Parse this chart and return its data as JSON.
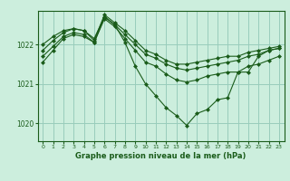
{
  "background_color": "#cceedd",
  "grid_color": "#99ccbb",
  "line_color": "#1a5c1a",
  "marker_color": "#1a5c1a",
  "xlabel": "Graphe pression niveau de la mer (hPa)",
  "xlim": [
    -0.5,
    23.5
  ],
  "ylim": [
    1019.55,
    1022.85
  ],
  "yticks": [
    1020,
    1021,
    1022
  ],
  "xticks": [
    0,
    1,
    2,
    3,
    4,
    5,
    6,
    7,
    8,
    9,
    10,
    11,
    12,
    13,
    14,
    15,
    16,
    17,
    18,
    19,
    20,
    21,
    22,
    23
  ],
  "series": [
    {
      "x": [
        0,
        1,
        2,
        3,
        4,
        5,
        6,
        7,
        8,
        9,
        10,
        11,
        12,
        13,
        14,
        15,
        16,
        17,
        18,
        19,
        20,
        21,
        22,
        23
      ],
      "y": [
        1022.0,
        1022.2,
        1022.35,
        1022.4,
        1022.35,
        1022.1,
        1022.75,
        1022.55,
        1022.35,
        1022.1,
        1021.85,
        1021.75,
        1021.6,
        1021.5,
        1021.5,
        1021.55,
        1021.6,
        1021.65,
        1021.7,
        1021.7,
        1021.8,
        1021.85,
        1021.9,
        1021.95
      ],
      "has_markers": true
    },
    {
      "x": [
        0,
        1,
        2,
        3,
        4,
        5,
        6,
        7,
        8,
        9,
        10,
        11,
        12,
        13,
        14,
        15,
        16,
        17,
        18,
        19,
        20,
        21,
        22,
        23
      ],
      "y": [
        1021.85,
        1022.1,
        1022.3,
        1022.4,
        1022.35,
        1022.15,
        1022.7,
        1022.5,
        1022.25,
        1022.0,
        1021.75,
        1021.65,
        1021.5,
        1021.4,
        1021.35,
        1021.4,
        1021.45,
        1021.5,
        1021.55,
        1021.6,
        1021.7,
        1021.75,
        1021.85,
        1021.9
      ],
      "has_markers": true
    },
    {
      "x": [
        0,
        1,
        2,
        3,
        4,
        5,
        6,
        7,
        8,
        9,
        10,
        11,
        12,
        13,
        14,
        15,
        16,
        17,
        18,
        19,
        20,
        21,
        22,
        23
      ],
      "y": [
        1021.7,
        1021.95,
        1022.2,
        1022.3,
        1022.25,
        1022.05,
        1022.65,
        1022.45,
        1022.15,
        1021.85,
        1021.55,
        1021.45,
        1021.25,
        1021.1,
        1021.05,
        1021.1,
        1021.2,
        1021.25,
        1021.3,
        1021.3,
        1021.45,
        1021.5,
        1021.6,
        1021.7
      ],
      "has_markers": true
    },
    {
      "x": [
        0,
        1,
        2,
        3,
        4,
        5,
        6,
        7,
        8,
        9,
        10,
        11,
        12,
        13,
        14,
        15,
        16,
        17,
        18,
        19,
        20,
        21,
        22,
        23
      ],
      "y": [
        1021.55,
        1021.85,
        1022.15,
        1022.25,
        1022.2,
        1022.05,
        1022.7,
        1022.5,
        1022.05,
        1021.45,
        1021.0,
        1020.7,
        1020.4,
        1020.2,
        1019.95,
        1020.25,
        1020.35,
        1020.6,
        1020.65,
        1021.3,
        1021.3,
        1021.7,
        1021.85,
        1021.9
      ],
      "has_markers": true
    }
  ]
}
